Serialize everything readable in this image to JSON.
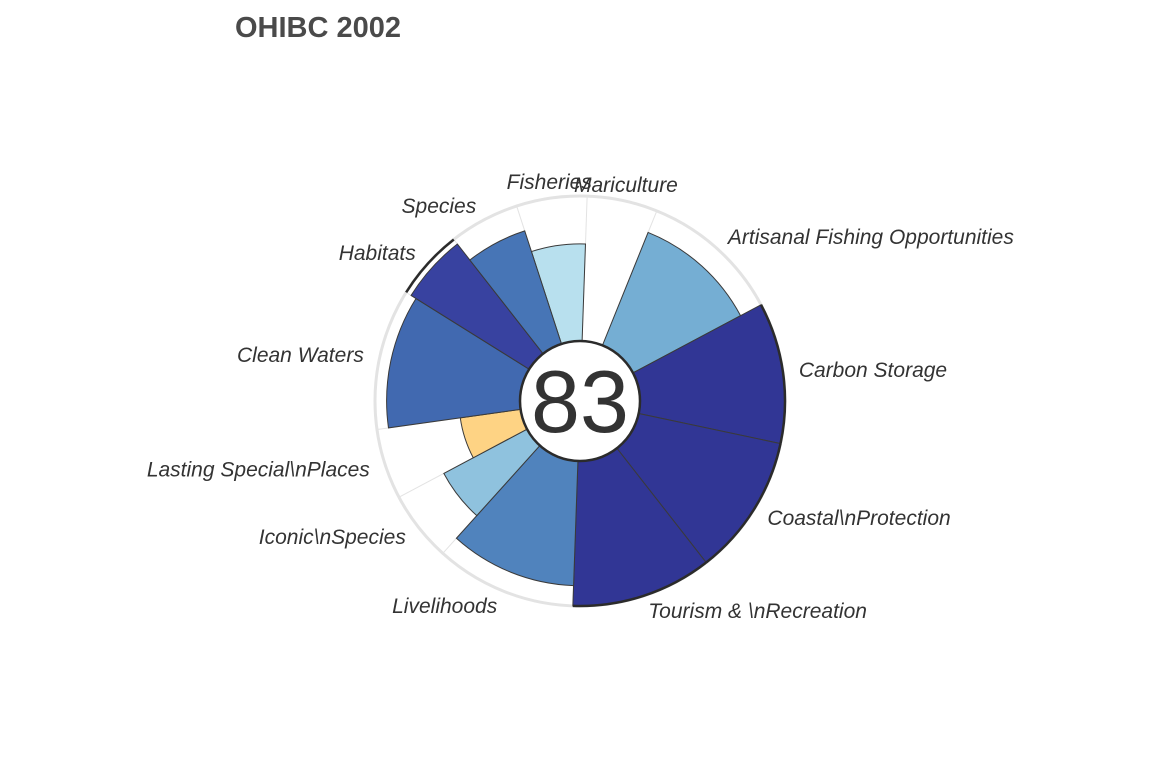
{
  "chart_data": {
    "type": "polar-bar",
    "title": "OHIBC 2002",
    "overall_score": "83",
    "max_value": 100,
    "outline_guides": true,
    "grid": true,
    "legend": "none",
    "goals": [
      {
        "label": "Fisheries",
        "value": 67,
        "weight": 1,
        "color": "#b8e0ee"
      },
      {
        "label": "Mariculture",
        "value": null,
        "weight": 1,
        "color": "#ffffff"
      },
      {
        "label": "Artisanal Fishing Opportunities",
        "value": 84,
        "weight": 2,
        "color": "#75aed3"
      },
      {
        "label": "Carbon Storage",
        "value": 100,
        "weight": 2,
        "color": "#313695"
      },
      {
        "label": "Coastal\\nProtection",
        "value": 100,
        "weight": 2,
        "color": "#313695"
      },
      {
        "label": "Tourism & \\nRecreation",
        "value": 100,
        "weight": 2,
        "color": "#313695"
      },
      {
        "label": "Livelihoods",
        "value": 86,
        "weight": 2,
        "color": "#5083bd"
      },
      {
        "label": "Iconic\\nSpecies",
        "value": 65,
        "weight": 1,
        "color": "#8fc2de"
      },
      {
        "label": "Lasting Special\\nPlaces",
        "value": 42,
        "weight": 1,
        "color": "#fed384"
      },
      {
        "label": "Clean Waters",
        "value": 92,
        "weight": 2,
        "color": "#4169b0"
      },
      {
        "label": "Habitats",
        "value": 96,
        "weight": 1,
        "color": "#3842a0"
      },
      {
        "label": "Species",
        "value": 82,
        "weight": 1,
        "color": "#4775b6"
      }
    ],
    "colors": {
      "outline": "#2b2b2b",
      "grid": "#e3e3e3",
      "center_fill": "#ffffff"
    }
  }
}
